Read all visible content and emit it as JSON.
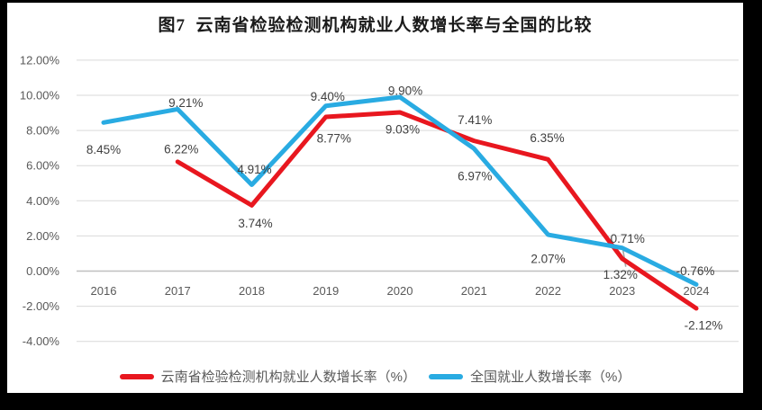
{
  "window": {
    "background": "#000000",
    "card_background": "#ffffff"
  },
  "chart_data": {
    "type": "line",
    "title": "图7  云南省检验检测机构就业人数增长率与全国的比较",
    "categories": [
      "2016",
      "2017",
      "2018",
      "2019",
      "2020",
      "2021",
      "2022",
      "2023",
      "2024"
    ],
    "series": [
      {
        "name": "云南省检验检测机构就业人数增长率（%）",
        "color": "#e8171f",
        "values": [
          null,
          6.22,
          3.74,
          8.77,
          9.03,
          7.41,
          6.35,
          0.71,
          -2.12
        ],
        "point_labels": [
          "",
          "6.22%",
          "3.74%",
          "8.77%",
          "9.03%",
          "7.41%",
          "6.35%",
          "0.71%",
          "-2.12%"
        ]
      },
      {
        "name": "全国就业人数增长率（%）",
        "color": "#29abe2",
        "values": [
          8.45,
          9.21,
          4.91,
          9.4,
          9.9,
          6.97,
          2.07,
          1.32,
          -0.76
        ],
        "point_labels": [
          "8.45%",
          "9.21%",
          "4.91%",
          "9.40%",
          "9.90%",
          "6.97%",
          "2.07%",
          "1.32%",
          "-0.76%"
        ]
      }
    ],
    "y_axis": {
      "min": -4,
      "max": 12,
      "step": 2,
      "tick_labels": [
        "12.00%",
        "10.00%",
        "8.00%",
        "6.00%",
        "4.00%",
        "2.00%",
        "0.00%",
        "-2.00%",
        "-4.00%"
      ]
    },
    "x_axis": {
      "tick_labels": [
        "2016",
        "2017",
        "2018",
        "2019",
        "2020",
        "2021",
        "2022",
        "2023",
        "2024"
      ]
    },
    "grid": true,
    "legend_position": "bottom",
    "colors": {
      "gridline": "#d9d9d9",
      "zero_axis": "#bfbfbf",
      "tick_text": "#595959",
      "data_label_text": "#404040",
      "leader_line": "#a6a6a6"
    },
    "layout_hints": {
      "label_offsets": [
        [
          null,
          [
            4,
            -14
          ],
          [
            4,
            20
          ],
          [
            9,
            24
          ],
          [
            3,
            19
          ],
          [
            1,
            -23
          ],
          [
            -1,
            -24
          ],
          [
            6,
            -22
          ],
          [
            8,
            19
          ]
        ],
        [
          [
            0,
            30
          ],
          [
            9,
            -7
          ],
          [
            3,
            -17
          ],
          [
            2,
            -10
          ],
          [
            6,
            -7
          ],
          [
            1,
            31
          ],
          [
            0,
            27
          ],
          [
            -2,
            30
          ],
          [
            -1,
            -15
          ]
        ]
      ],
      "leader_line_at": {
        "series": 1,
        "index": 7
      }
    }
  }
}
